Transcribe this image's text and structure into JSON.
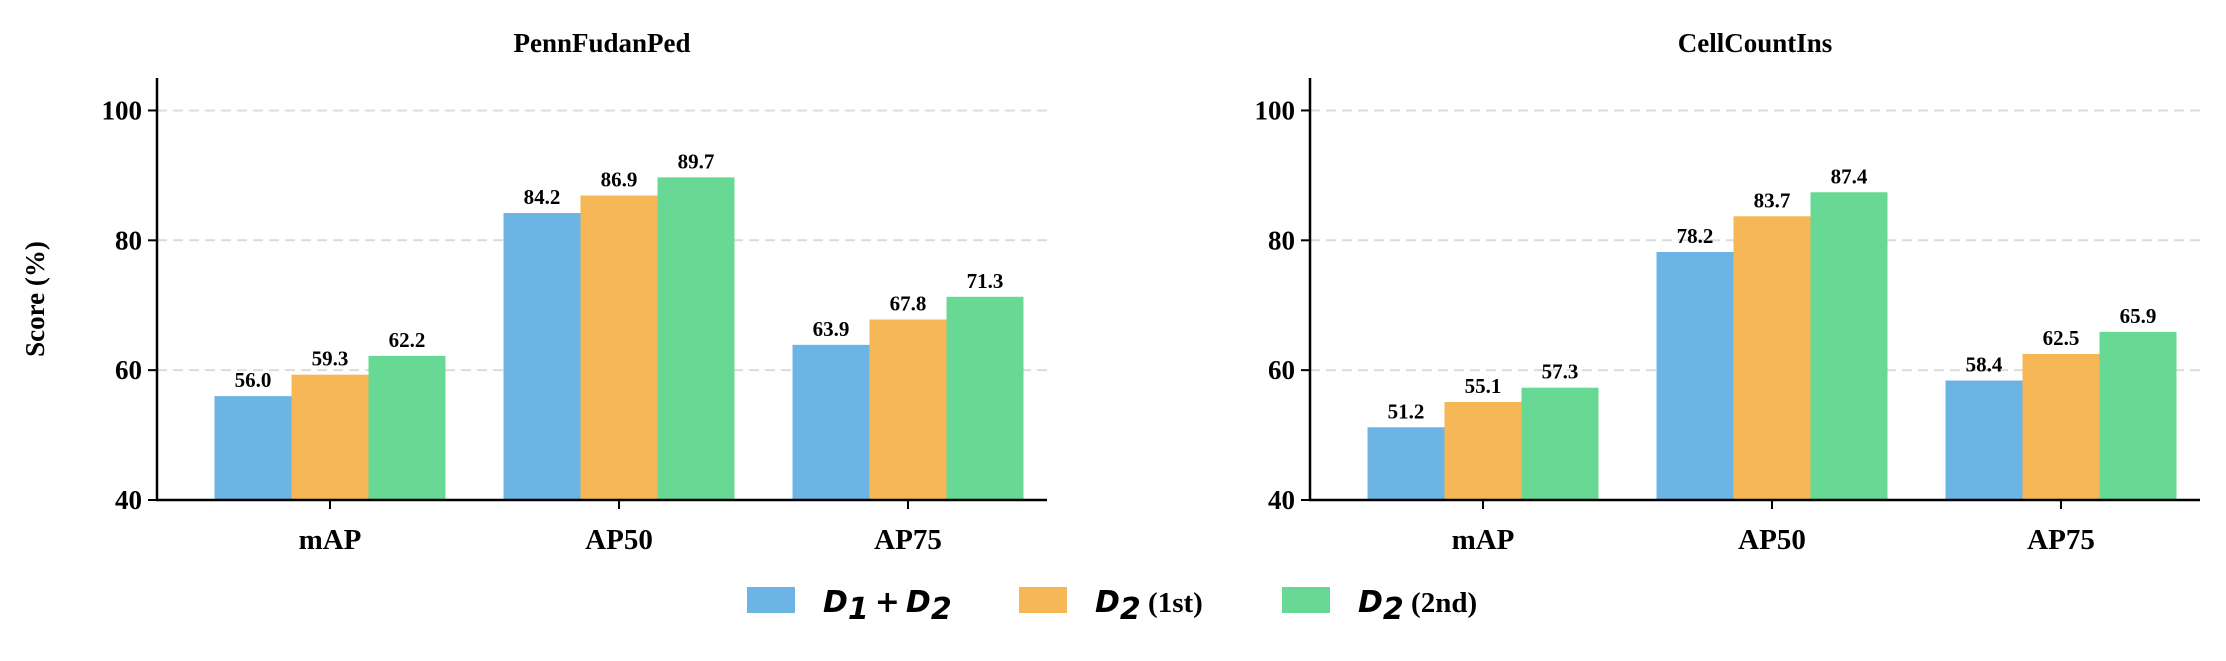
{
  "chart_data": [
    {
      "type": "bar",
      "title": "PennFudanPed",
      "ylabel": "Score (%)",
      "xlabel": "",
      "ylim": [
        40,
        105
      ],
      "yticks": [
        40,
        60,
        80,
        100
      ],
      "grid": "y-dashed",
      "categories": [
        "mAP",
        "AP50",
        "AP75"
      ],
      "series": [
        {
          "name": "D1 + D2",
          "color": "#6cb4e4",
          "values": [
            56.0,
            84.2,
            63.9
          ],
          "labels": [
            "56.0",
            "84.2",
            "63.9"
          ]
        },
        {
          "name": "D2 (1st)",
          "color": "#f6b756",
          "values": [
            59.3,
            86.9,
            67.8
          ],
          "labels": [
            "59.3",
            "86.9",
            "67.8"
          ]
        },
        {
          "name": "D2 (2nd)",
          "color": "#68d995",
          "values": [
            62.2,
            89.7,
            71.3
          ],
          "labels": [
            "62.2",
            "89.7",
            "71.3"
          ]
        }
      ]
    },
    {
      "type": "bar",
      "title": "CellCountIns",
      "ylabel": "",
      "xlabel": "",
      "ylim": [
        40,
        105
      ],
      "yticks": [
        40,
        60,
        80,
        100
      ],
      "grid": "y-dashed",
      "categories": [
        "mAP",
        "AP50",
        "AP75"
      ],
      "series": [
        {
          "name": "D1 + D2",
          "color": "#6cb4e4",
          "values": [
            51.2,
            78.2,
            58.4
          ],
          "labels": [
            "51.2",
            "78.2",
            "58.4"
          ]
        },
        {
          "name": "D2 (1st)",
          "color": "#f6b756",
          "values": [
            55.1,
            83.7,
            62.5
          ],
          "labels": [
            "55.1",
            "83.7",
            "62.5"
          ]
        },
        {
          "name": "D2 (2nd)",
          "color": "#68d995",
          "values": [
            57.3,
            87.4,
            65.9
          ],
          "labels": [
            "57.3",
            "87.4",
            "65.9"
          ]
        }
      ]
    }
  ],
  "legend": {
    "placement": "bottom-center",
    "items": [
      {
        "math_a": "D",
        "sub_a": "1",
        "op": "+",
        "math_b": "D",
        "sub_b": "2",
        "suffix": "",
        "color": "#6cb4e4"
      },
      {
        "math_a": "D",
        "sub_a": "2",
        "op": "",
        "math_b": "",
        "sub_b": "",
        "suffix": " (1st)",
        "color": "#f6b756"
      },
      {
        "math_a": "D",
        "sub_a": "2",
        "op": "",
        "math_b": "",
        "sub_b": "",
        "suffix": " (2nd)",
        "color": "#68d995"
      }
    ]
  }
}
